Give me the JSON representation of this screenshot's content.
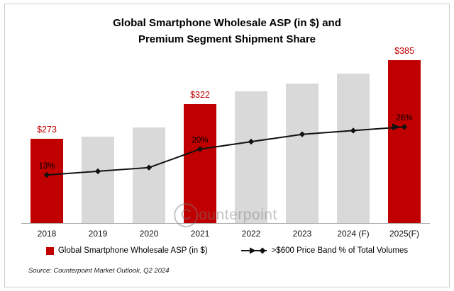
{
  "title": {
    "line1": "Global Smartphone Wholesale ASP (in $) and",
    "line2": "Premium Segment Shipment Share"
  },
  "watermark": "Counterpoint",
  "source": "Source: Counterpoint Market Outlook, Q2 2024",
  "colors": {
    "highlight": "#C00000",
    "bar_gray": "#D9D9D9",
    "line": "#111111",
    "label_red": "#C00000"
  },
  "legend": [
    {
      "label": "Global Smartphone Wholesale ASP (in $)"
    },
    {
      "label": ">$600 Price Band % of Total Volumes"
    }
  ],
  "chart_data": {
    "type": "bar",
    "subtype": "bar-line-combo",
    "title": "Global Smartphone Wholesale ASP (in $) and Premium Segment Shipment Share",
    "categories": [
      "2018",
      "2019",
      "2020",
      "2021",
      "2022",
      "2023",
      "2024 (F)",
      "2025(F)"
    ],
    "series": [
      {
        "name": "Global Smartphone Wholesale ASP (in $)",
        "type": "bar",
        "values": [
          273,
          276,
          289,
          322,
          340,
          352,
          366,
          385
        ],
        "highlight_indices": [
          0,
          3,
          7
        ],
        "labeled": [
          {
            "index": 0,
            "label": "$273"
          },
          {
            "index": 3,
            "label": "$322"
          },
          {
            "index": 7,
            "label": "$385"
          }
        ]
      },
      {
        "name": ">$600 Price Band % of Total Volumes",
        "type": "line",
        "values": [
          13,
          14,
          15,
          20,
          22,
          24,
          25,
          26
        ],
        "labeled": [
          {
            "index": 0,
            "label": "13%"
          },
          {
            "index": 3,
            "label": "20%"
          },
          {
            "index": 7,
            "label": "26%"
          }
        ]
      }
    ],
    "bar_axis_range": [
      152,
      390
    ],
    "line_axis_range": [
      0,
      45
    ],
    "grid": false,
    "legend_position": "bottom"
  }
}
